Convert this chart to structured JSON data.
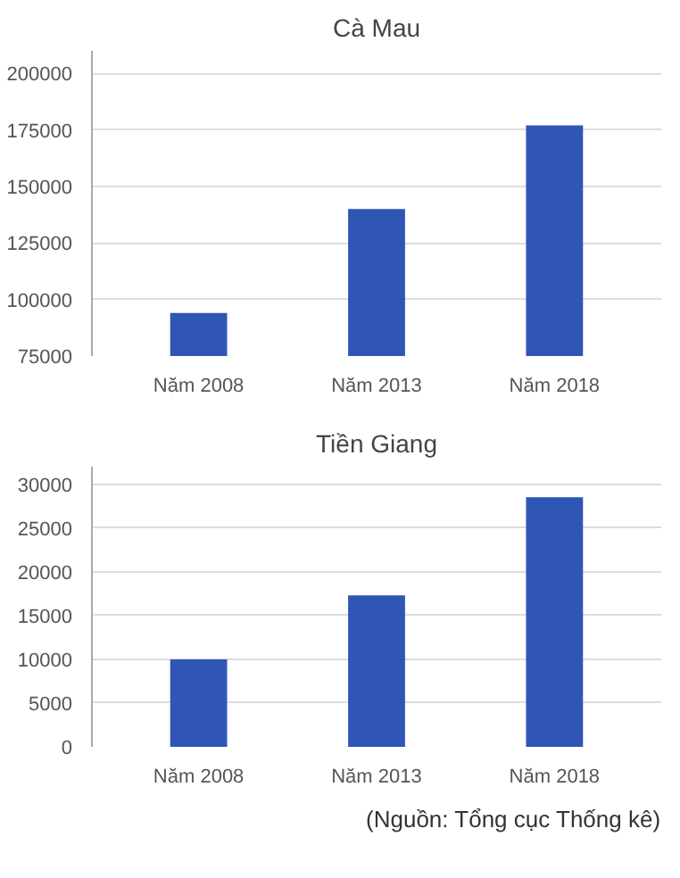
{
  "chart_data": [
    {
      "type": "bar",
      "title": "Cà Mau",
      "categories": [
        "Năm 2008",
        "Năm 2013",
        "Năm 2018"
      ],
      "values": [
        94000,
        140000,
        177000
      ],
      "color": "#2f55b5",
      "ylim": [
        75000,
        210000
      ],
      "yticks": [
        75000,
        100000,
        125000,
        150000,
        175000,
        200000
      ],
      "grid": "y"
    },
    {
      "type": "bar",
      "title": "Tiền Giang",
      "categories": [
        "Năm 2008",
        "Năm 2013",
        "Năm 2018"
      ],
      "values": [
        10000,
        17300,
        28500
      ],
      "color": "#2f55b5",
      "ylim": [
        0,
        32000
      ],
      "yticks": [
        0,
        5000,
        10000,
        15000,
        20000,
        25000,
        30000
      ],
      "grid": "y",
      "annotations": [
        "(Nguồn: Tổng cục Thống kê)"
      ]
    }
  ]
}
